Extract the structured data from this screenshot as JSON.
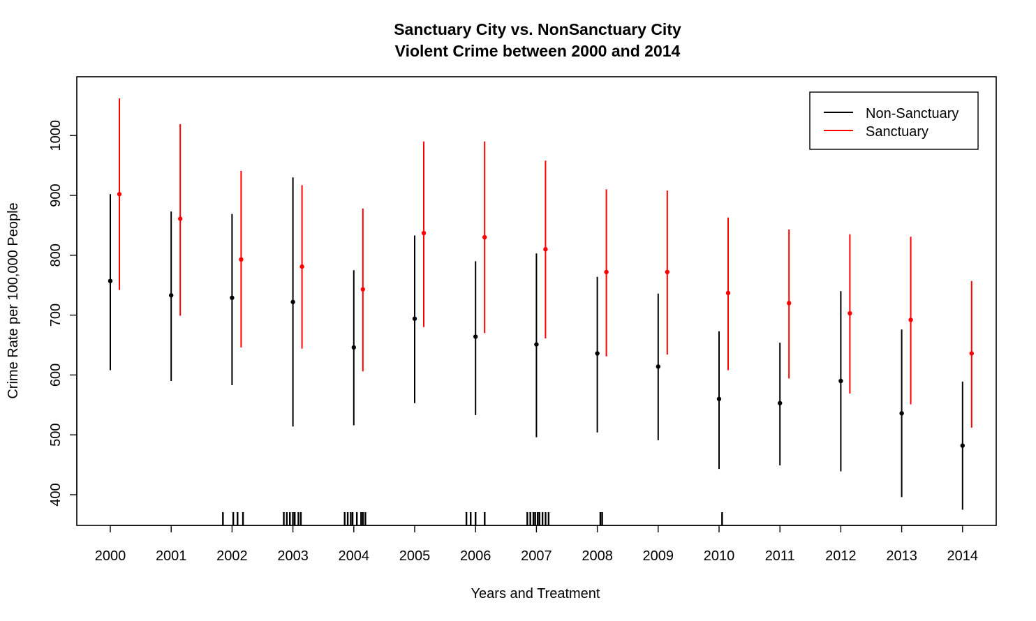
{
  "chart_data": {
    "type": "scatter",
    "title_line1": "Sanctuary City vs. NonSanctuary City",
    "title_line2": "Violent Crime between 2000 and 2014",
    "xlabel": "Years and Treatment",
    "ylabel": "Crime Rate per 100,000 People",
    "ylim": [
      350,
      1100
    ],
    "yticks": [
      400,
      500,
      600,
      700,
      800,
      900,
      1000
    ],
    "categories": [
      "2000",
      "2001",
      "2002",
      "2003",
      "2004",
      "2005",
      "2006",
      "2007",
      "2008",
      "2009",
      "2010",
      "2011",
      "2012",
      "2013",
      "2014"
    ],
    "legend_position": "top-right",
    "series": [
      {
        "name": "Non-Sanctuary",
        "color": "#000000",
        "points": [
          {
            "year": 2000,
            "y": 757,
            "low": 608,
            "high": 902
          },
          {
            "year": 2001,
            "y": 733,
            "low": 590,
            "high": 873
          },
          {
            "year": 2002,
            "y": 729,
            "low": 583,
            "high": 869
          },
          {
            "year": 2003,
            "y": 722,
            "low": 514,
            "high": 930
          },
          {
            "year": 2004,
            "y": 646,
            "low": 516,
            "high": 775
          },
          {
            "year": 2005,
            "y": 694,
            "low": 553,
            "high": 833
          },
          {
            "year": 2006,
            "y": 664,
            "low": 533,
            "high": 790
          },
          {
            "year": 2007,
            "y": 651,
            "low": 496,
            "high": 803
          },
          {
            "year": 2008,
            "y": 636,
            "low": 504,
            "high": 764
          },
          {
            "year": 2009,
            "y": 614,
            "low": 491,
            "high": 736
          },
          {
            "year": 2010,
            "y": 560,
            "low": 443,
            "high": 673
          },
          {
            "year": 2011,
            "y": 553,
            "low": 449,
            "high": 654
          },
          {
            "year": 2012,
            "y": 590,
            "low": 439,
            "high": 740
          },
          {
            "year": 2013,
            "y": 536,
            "low": 396,
            "high": 676
          },
          {
            "year": 2014,
            "y": 482,
            "low": 375,
            "high": 589
          }
        ]
      },
      {
        "name": "Sanctuary",
        "color": "#ff0000",
        "points": [
          {
            "year": 2000,
            "y": 902,
            "low": 742,
            "high": 1062
          },
          {
            "year": 2001,
            "y": 861,
            "low": 699,
            "high": 1019
          },
          {
            "year": 2002,
            "y": 793,
            "low": 646,
            "high": 941
          },
          {
            "year": 2003,
            "y": 781,
            "low": 644,
            "high": 917
          },
          {
            "year": 2004,
            "y": 743,
            "low": 606,
            "high": 878
          },
          {
            "year": 2005,
            "y": 837,
            "low": 680,
            "high": 990
          },
          {
            "year": 2006,
            "y": 830,
            "low": 670,
            "high": 990
          },
          {
            "year": 2007,
            "y": 810,
            "low": 661,
            "high": 958
          },
          {
            "year": 2008,
            "y": 772,
            "low": 631,
            "high": 910
          },
          {
            "year": 2009,
            "y": 772,
            "low": 634,
            "high": 908
          },
          {
            "year": 2010,
            "y": 737,
            "low": 608,
            "high": 863
          },
          {
            "year": 2011,
            "y": 720,
            "low": 594,
            "high": 843
          },
          {
            "year": 2012,
            "y": 703,
            "low": 569,
            "high": 835
          },
          {
            "year": 2013,
            "y": 692,
            "low": 551,
            "high": 831
          },
          {
            "year": 2014,
            "y": 636,
            "low": 512,
            "high": 757
          }
        ]
      }
    ],
    "rug": [
      2001.85,
      2002.02,
      2002.09,
      2002.18,
      2002.85,
      2002.9,
      2002.95,
      2003.0,
      2003.03,
      2003.09,
      2003.13,
      2003.85,
      2003.9,
      2003.95,
      2003.98,
      2004.05,
      2004.12,
      2004.15,
      2004.19,
      2005.85,
      2005.92,
      2006.0,
      2006.15,
      2006.85,
      2006.9,
      2006.95,
      2006.98,
      2007.02,
      2007.05,
      2007.1,
      2007.15,
      2007.2,
      2008.05,
      2008.08,
      2010.05
    ]
  }
}
